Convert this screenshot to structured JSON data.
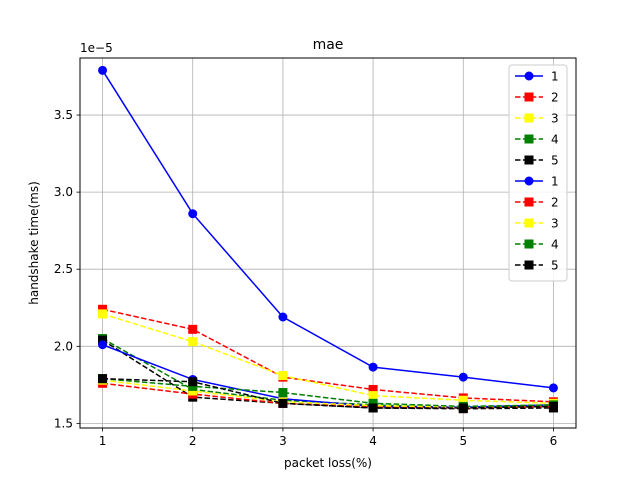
{
  "chart_data": {
    "type": "line",
    "title": "mae",
    "xlabel": "packet loss(%)",
    "ylabel": "handshake time(ms)",
    "y_offset_label": "1e−5",
    "x": [
      1,
      2,
      3,
      4,
      5,
      6
    ],
    "xticks": [
      "1",
      "2",
      "3",
      "4",
      "5",
      "6"
    ],
    "yticks": [
      1.5,
      2.0,
      2.5,
      3.0,
      3.5
    ],
    "ytick_labels": [
      "1.5",
      "2.0",
      "2.5",
      "3.0",
      "3.5"
    ],
    "xlim": [
      0.75,
      6.25
    ],
    "ylim": [
      1.47,
      3.87
    ],
    "grid": true,
    "legend_position": "top-right",
    "series": [
      {
        "name": "1",
        "color": "#0000ff",
        "marker": "circle",
        "dash": "solid",
        "values": [
          3.79,
          2.86,
          2.19,
          1.865,
          1.8,
          1.73
        ]
      },
      {
        "name": "2",
        "color": "#ff0000",
        "marker": "square",
        "dash": "dashed",
        "values": [
          2.24,
          2.11,
          1.8,
          1.72,
          1.665,
          1.64
        ]
      },
      {
        "name": "3",
        "color": "#ffff00",
        "marker": "square",
        "dash": "dashed",
        "values": [
          2.21,
          2.03,
          1.81,
          1.68,
          1.65,
          1.63
        ]
      },
      {
        "name": "4",
        "color": "#008000",
        "marker": "square",
        "dash": "dashed",
        "values": [
          2.05,
          1.72,
          1.65,
          1.62,
          1.6,
          1.61
        ]
      },
      {
        "name": "5",
        "color": "#000000",
        "marker": "square",
        "dash": "dashed",
        "values": [
          2.04,
          1.67,
          1.63,
          1.6,
          1.595,
          1.6
        ]
      },
      {
        "name": "1",
        "color": "#0000ff",
        "marker": "circle",
        "dash": "solid",
        "values": [
          2.01,
          1.785,
          1.66,
          1.61,
          1.605,
          1.62
        ]
      },
      {
        "name": "2",
        "color": "#ff0000",
        "marker": "square",
        "dash": "dashed",
        "values": [
          1.76,
          1.69,
          1.63,
          1.61,
          1.6,
          1.61
        ]
      },
      {
        "name": "3",
        "color": "#ffff00",
        "marker": "square",
        "dash": "dashed",
        "values": [
          1.78,
          1.71,
          1.64,
          1.615,
          1.605,
          1.62
        ]
      },
      {
        "name": "4",
        "color": "#008000",
        "marker": "square",
        "dash": "dashed",
        "values": [
          1.79,
          1.74,
          1.7,
          1.63,
          1.61,
          1.62
        ]
      },
      {
        "name": "5",
        "color": "#000000",
        "marker": "square",
        "dash": "dashed",
        "values": [
          1.79,
          1.77,
          1.63,
          1.6,
          1.6,
          1.61
        ]
      }
    ]
  }
}
